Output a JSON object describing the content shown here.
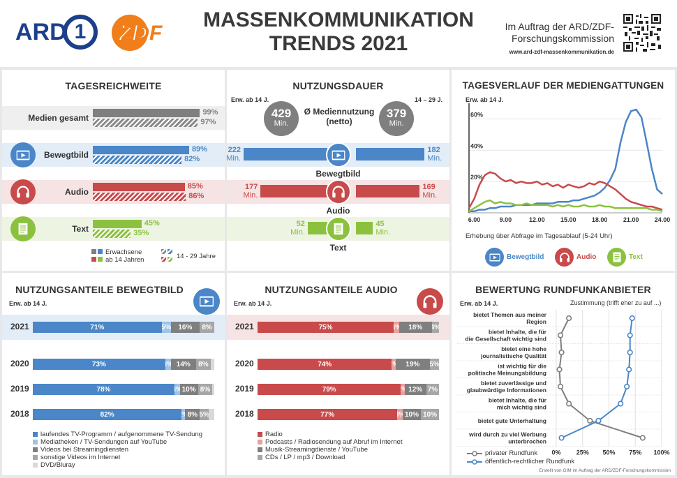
{
  "header": {
    "logo_ard": "ARD",
    "logo_ard_num": "1",
    "logo_zdf": "ZDF",
    "title_line1": "MASSENKOMMUNIKATION",
    "title_line2": "TRENDS 2021",
    "client_line1": "Im Auftrag der ARD/ZDF-",
    "client_line2": "Forschungskommission",
    "url": "www.ard-zdf-massenkommunikation.de"
  },
  "colors": {
    "grey": "#7f7f7f",
    "blue": "#4a86c8",
    "red": "#c84a4a",
    "green": "#8cc13f",
    "lightgrey": "#bfbfbf",
    "pink": "#e8a0a0",
    "lightblue": "#9dc3e6"
  },
  "tagesreichweite": {
    "title": "TAGESREICHWEITE",
    "rows": [
      {
        "label": "Medien gesamt",
        "adult": 99,
        "young": 97,
        "adult_label": "99%",
        "young_label": "97%",
        "icon": "none"
      },
      {
        "label": "Bewegtbild",
        "adult": 89,
        "young": 82,
        "adult_label": "89%",
        "young_label": "82%",
        "icon": "video-icon"
      },
      {
        "label": "Audio",
        "adult": 85,
        "young": 86,
        "adult_label": "85%",
        "young_label": "86%",
        "icon": "headphones-icon"
      },
      {
        "label": "Text",
        "adult": 45,
        "young": 35,
        "adult_label": "45%",
        "young_label": "35%",
        "icon": "document-icon"
      }
    ],
    "legend_adult_line1": "Erwachsene",
    "legend_adult_line2": "ab 14 Jahren",
    "legend_young": "14 - 29 Jahre"
  },
  "nutzungsdauer": {
    "title": "NUTZUNGSDAUER",
    "left_label": "Erw. ab 14 J.",
    "right_label": "14 – 29 J.",
    "total_adult": "429",
    "total_young": "379",
    "unit": "Min.",
    "center_line1": "Ø Mediennutzung",
    "center_line2": "(netto)",
    "rows": [
      {
        "label": "Bewegtbild",
        "adult": 222,
        "young": 182,
        "adult_label": "222",
        "young_label": "182"
      },
      {
        "label": "Audio",
        "adult": 177,
        "young": 169,
        "adult_label": "177",
        "young_label": "169"
      },
      {
        "label": "Text",
        "adult": 52,
        "young": 45,
        "adult_label": "52",
        "young_label": "45"
      }
    ]
  },
  "tagesverlauf": {
    "title": "TAGESVERLAUF DER MEDIENGATTUNGEN",
    "subtitle": "Erw. ab 14 J.",
    "caption": "Erhebung über Abfrage im Tagesablauf (5-24 Uhr)",
    "legend": [
      "Bewegtbild",
      "Audio",
      "Text"
    ]
  },
  "bewegtbild_anteile": {
    "title": "NUTZUNGSANTEILE BEWEGTBILD",
    "subtitle": "Erw. ab 14 J.",
    "legend": [
      "laufendes TV-Programm / aufgenommene TV-Sendung",
      "Mediatheken / TV-Sendungen auf YouTube",
      "Videos bei Streamingdiensten",
      "sonstige Videos im Internet",
      "DVD/Bluray"
    ]
  },
  "audio_anteile": {
    "title": "NUTZUNGSANTEILE AUDIO",
    "subtitle": "Erw. ab 14 J.",
    "legend": [
      "Radio",
      "Podcasts / Radiosendung auf Abruf im Internet",
      "Musik-Streamingdienste / YouTube",
      "CDs / LP / mp3 / Download"
    ]
  },
  "bewertung": {
    "title": "BEWERTUNG RUNDFUNKANBIETER",
    "subtitle": "Erw. ab 14 J.",
    "scale_label": "Zustimmung (trifft eher zu auf ...)",
    "legend_private": "privater Rundfunk",
    "legend_public": "öffentlich-rechtlicher Rundfunk",
    "credit": "Erstellt von GIM im Auftrag der ARD/ZDF-Forschungskommission"
  },
  "chart_data": [
    {
      "type": "line",
      "title": "TAGESVERLAUF DER MEDIENGATTUNGEN",
      "xlabel": "Erhebung über Abfrage im Tagesablauf (5-24 Uhr)",
      "x_ticks": [
        "6.00",
        "9.00",
        "12.00",
        "15.00",
        "18.00",
        "21.00",
        "24.00"
      ],
      "y_ticks": [
        "20%",
        "40%",
        "60%"
      ],
      "xlim": [
        5.5,
        24
      ],
      "ylim": [
        0,
        70
      ],
      "series": [
        {
          "name": "Bewegtbild",
          "color": "#4a86c8",
          "x": [
            5.5,
            6,
            6.5,
            7,
            7.5,
            8,
            8.5,
            9,
            9.5,
            10,
            10.5,
            11,
            11.5,
            12,
            12.5,
            13,
            13.5,
            14,
            14.5,
            15,
            15.5,
            16,
            16.5,
            17,
            17.5,
            18,
            18.5,
            19,
            19.5,
            20,
            20.5,
            21,
            21.5,
            22,
            22.5,
            23,
            23.5,
            24
          ],
          "y": [
            1,
            1,
            2,
            2,
            3,
            3,
            4,
            4,
            4,
            5,
            5,
            5,
            5,
            6,
            6,
            6,
            6,
            7,
            7,
            7,
            8,
            8,
            9,
            10,
            11,
            13,
            16,
            21,
            28,
            45,
            58,
            65,
            66,
            61,
            45,
            28,
            15,
            12
          ]
        },
        {
          "name": "Audio",
          "color": "#c84a4a",
          "x": [
            5.5,
            6,
            6.5,
            7,
            7.5,
            8,
            8.5,
            9,
            9.5,
            10,
            10.5,
            11,
            11.5,
            12,
            12.5,
            13,
            13.5,
            14,
            14.5,
            15,
            15.5,
            16,
            16.5,
            17,
            17.5,
            18,
            18.5,
            19,
            19.5,
            20,
            20.5,
            21,
            21.5,
            22,
            22.5,
            23,
            23.5,
            24
          ],
          "y": [
            3,
            9,
            18,
            24,
            26,
            25,
            22,
            20,
            21,
            19,
            20,
            19,
            19,
            20,
            18,
            19,
            17,
            18,
            16,
            18,
            17,
            16,
            17,
            19,
            18,
            20,
            19,
            17,
            15,
            12,
            9,
            7,
            6,
            5,
            4,
            4,
            3,
            2
          ]
        },
        {
          "name": "Text",
          "color": "#8cc13f",
          "x": [
            5.5,
            6,
            6.5,
            7,
            7.5,
            8,
            8.5,
            9,
            9.5,
            10,
            10.5,
            11,
            11.5,
            12,
            12.5,
            13,
            13.5,
            14,
            14.5,
            15,
            15.5,
            16,
            16.5,
            17,
            17.5,
            18,
            18.5,
            19,
            19.5,
            20,
            20.5,
            21,
            21.5,
            22,
            22.5,
            23,
            23.5,
            24
          ],
          "y": [
            1,
            3,
            5,
            7,
            8,
            6,
            7,
            6,
            6,
            5,
            5,
            6,
            5,
            5,
            5,
            5,
            4,
            5,
            4,
            5,
            4,
            4,
            5,
            4,
            4,
            5,
            4,
            4,
            3,
            3,
            3,
            3,
            3,
            3,
            3,
            2,
            2,
            1
          ]
        }
      ]
    },
    {
      "type": "bar",
      "title": "NUTZUNGSANTEILE BEWEGTBILD",
      "categories": [
        "2021",
        "2020",
        "2019",
        "2018"
      ],
      "series": [
        {
          "name": "laufendes TV-Programm / aufgenommene TV-Sendung",
          "color": "#4a86c8",
          "values": [
            71,
            73,
            78,
            82
          ],
          "labels": [
            "71%",
            "73%",
            "78%",
            "82%"
          ]
        },
        {
          "name": "Mediatheken / TV-Sendungen auf YouTube",
          "color": "#9dc3e6",
          "values": [
            5,
            3,
            3,
            2
          ],
          "labels": [
            "5%",
            "3%",
            "3%",
            "2%"
          ]
        },
        {
          "name": "Videos bei Streamingdiensten",
          "color": "#7f7f7f",
          "values": [
            16,
            14,
            10,
            8
          ],
          "labels": [
            "16%",
            "14%",
            "10%",
            "8%"
          ]
        },
        {
          "name": "sonstige Videos im Internet",
          "color": "#a6a6a6",
          "values": [
            8,
            8,
            8,
            5
          ],
          "labels": [
            "8%",
            "8%",
            "8%",
            "5%"
          ]
        },
        {
          "name": "DVD/Bluray",
          "color": "#d9d9d9",
          "values": [
            0,
            2,
            1,
            3
          ],
          "labels": [
            "",
            "",
            "",
            ""
          ]
        }
      ]
    },
    {
      "type": "bar",
      "title": "NUTZUNGSANTEILE AUDIO",
      "categories": [
        "2021",
        "2020",
        "2019",
        "2018"
      ],
      "series": [
        {
          "name": "Radio",
          "color": "#c84a4a",
          "values": [
            75,
            74,
            79,
            77
          ],
          "labels": [
            "75%",
            "74%",
            "79%",
            "77%"
          ]
        },
        {
          "name": "Podcasts / Radiosendung auf Abruf im Internet",
          "color": "#e8a0a0",
          "values": [
            3,
            2,
            2,
            3
          ],
          "labels": [
            "3%",
            "2%",
            "2%",
            "3%"
          ]
        },
        {
          "name": "Musik-Streamingdienste / YouTube",
          "color": "#7f7f7f",
          "values": [
            18,
            19,
            12,
            10
          ],
          "labels": [
            "18%",
            "19%",
            "12%",
            "10%"
          ]
        },
        {
          "name": "CDs / LP / mp3 / Download",
          "color": "#a6a6a6",
          "values": [
            4,
            5,
            7,
            10
          ],
          "labels": [
            "4%",
            "5%",
            "7%",
            "10%"
          ]
        }
      ]
    },
    {
      "type": "line",
      "title": "BEWERTUNG RUNDFUNKANBIETER",
      "x_ticks": [
        "0%",
        "25%",
        "50%",
        "75%",
        "100%"
      ],
      "xlim": [
        0,
        100
      ],
      "categories": [
        "bietet Themen aus meiner Region",
        "bietet Inhalte, die für die Gesellschaft wichtig sind",
        "bietet eine hohe journalistische Qualität",
        "ist wichtig für die politische Meinungsbildung",
        "bietet zuverlässige und glaubwürdige Informationen",
        "bietet Inhalte, die für mich wichtig sind",
        "bietet gute Unterhaltung",
        "wird durch zu viel Werbung unterbrochen"
      ],
      "series": [
        {
          "name": "privater Rundfunk",
          "color": "#7f7f7f",
          "values": [
            12,
            4,
            5,
            3,
            4,
            12,
            32,
            82
          ]
        },
        {
          "name": "öffentlich-rechtlicher Rundfunk",
          "color": "#4a86c8",
          "values": [
            72,
            70,
            70,
            69,
            67,
            61,
            40,
            5
          ]
        }
      ]
    }
  ]
}
